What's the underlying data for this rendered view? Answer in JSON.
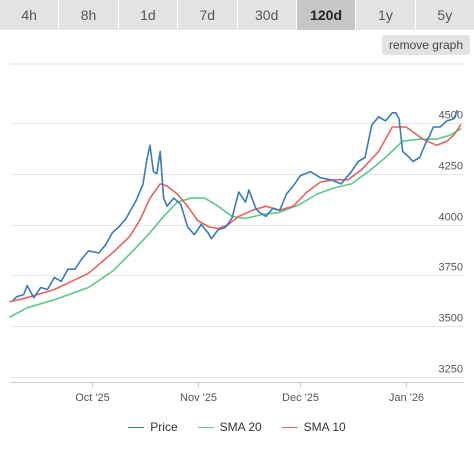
{
  "tabs": [
    {
      "label": "4h",
      "active": false
    },
    {
      "label": "8h",
      "active": false
    },
    {
      "label": "1d",
      "active": false
    },
    {
      "label": "7d",
      "active": false
    },
    {
      "label": "30d",
      "active": false
    },
    {
      "label": "120d",
      "active": true
    },
    {
      "label": "1y",
      "active": false
    },
    {
      "label": "5y",
      "active": false
    }
  ],
  "remove_button_label": "remove graph",
  "chart_data": {
    "type": "line",
    "x_axis": {
      "type": "date",
      "range": [
        "2025-09-07",
        "2026-01-18"
      ],
      "ticks": [
        {
          "date": "2025-10-01",
          "label": "Oct '25"
        },
        {
          "date": "2025-11-01",
          "label": "Nov '25"
        },
        {
          "date": "2025-12-01",
          "label": "Dec '25"
        },
        {
          "date": "2026-01-01",
          "label": "Jan '26"
        }
      ]
    },
    "y_axis": {
      "position": "right",
      "ylim": [
        3225,
        4790
      ],
      "ticks": [
        3250,
        3500,
        3750,
        4000,
        4250,
        4500
      ]
    },
    "grid": "horizontal",
    "legend_position": "bottom",
    "series": [
      {
        "name": "Price",
        "color": "#3a7ab8",
        "points": [
          [
            "2025-09-08",
            3630
          ],
          [
            "2025-09-09",
            3645
          ],
          [
            "2025-09-11",
            3655
          ],
          [
            "2025-09-12",
            3700
          ],
          [
            "2025-09-14",
            3640
          ],
          [
            "2025-09-16",
            3690
          ],
          [
            "2025-09-18",
            3680
          ],
          [
            "2025-09-20",
            3740
          ],
          [
            "2025-09-22",
            3720
          ],
          [
            "2025-09-24",
            3780
          ],
          [
            "2025-09-26",
            3780
          ],
          [
            "2025-09-28",
            3830
          ],
          [
            "2025-09-30",
            3870
          ],
          [
            "2025-10-03",
            3860
          ],
          [
            "2025-10-05",
            3900
          ],
          [
            "2025-10-07",
            3960
          ],
          [
            "2025-10-09",
            3990
          ],
          [
            "2025-10-11",
            4030
          ],
          [
            "2025-10-14",
            4120
          ],
          [
            "2025-10-16",
            4200
          ],
          [
            "2025-10-17",
            4310
          ],
          [
            "2025-10-18",
            4390
          ],
          [
            "2025-10-19",
            4260
          ],
          [
            "2025-10-20",
            4250
          ],
          [
            "2025-10-21",
            4360
          ],
          [
            "2025-10-22",
            4130
          ],
          [
            "2025-10-23",
            4090
          ],
          [
            "2025-10-25",
            4130
          ],
          [
            "2025-10-27",
            4100
          ],
          [
            "2025-10-29",
            3990
          ],
          [
            "2025-10-31",
            3950
          ],
          [
            "2025-11-02",
            4000
          ],
          [
            "2025-11-04",
            3960
          ],
          [
            "2025-11-05",
            3930
          ],
          [
            "2025-11-07",
            3975
          ],
          [
            "2025-11-09",
            3985
          ],
          [
            "2025-11-11",
            4030
          ],
          [
            "2025-11-13",
            4160
          ],
          [
            "2025-11-15",
            4110
          ],
          [
            "2025-11-16",
            4170
          ],
          [
            "2025-11-18",
            4080
          ],
          [
            "2025-11-19",
            4060
          ],
          [
            "2025-11-21",
            4040
          ],
          [
            "2025-11-23",
            4080
          ],
          [
            "2025-11-25",
            4070
          ],
          [
            "2025-11-27",
            4150
          ],
          [
            "2025-11-29",
            4190
          ],
          [
            "2025-12-01",
            4240
          ],
          [
            "2025-12-04",
            4260
          ],
          [
            "2025-12-07",
            4230
          ],
          [
            "2025-12-10",
            4220
          ],
          [
            "2025-12-13",
            4200
          ],
          [
            "2025-12-16",
            4260
          ],
          [
            "2025-12-18",
            4310
          ],
          [
            "2025-12-20",
            4330
          ],
          [
            "2025-12-22",
            4490
          ],
          [
            "2025-12-24",
            4530
          ],
          [
            "2025-12-26",
            4510
          ],
          [
            "2025-12-28",
            4550
          ],
          [
            "2025-12-29",
            4550
          ],
          [
            "2025-12-30",
            4520
          ],
          [
            "2025-12-31",
            4360
          ],
          [
            "2026-01-02",
            4330
          ],
          [
            "2026-01-03",
            4310
          ],
          [
            "2026-01-05",
            4330
          ],
          [
            "2026-01-07",
            4410
          ],
          [
            "2026-01-08",
            4440
          ],
          [
            "2026-01-09",
            4480
          ],
          [
            "2026-01-11",
            4480
          ],
          [
            "2026-01-13",
            4510
          ],
          [
            "2026-01-15",
            4520
          ],
          [
            "2026-01-16",
            4560
          ]
        ]
      },
      {
        "name": "SMA 20",
        "color": "#5cc887",
        "points": [
          [
            "2025-09-07",
            3545
          ],
          [
            "2025-09-12",
            3590
          ],
          [
            "2025-09-20",
            3630
          ],
          [
            "2025-09-30",
            3690
          ],
          [
            "2025-10-07",
            3770
          ],
          [
            "2025-10-13",
            3870
          ],
          [
            "2025-10-18",
            3960
          ],
          [
            "2025-10-22",
            4040
          ],
          [
            "2025-10-26",
            4110
          ],
          [
            "2025-10-30",
            4130
          ],
          [
            "2025-11-03",
            4130
          ],
          [
            "2025-11-07",
            4090
          ],
          [
            "2025-11-11",
            4040
          ],
          [
            "2025-11-15",
            4030
          ],
          [
            "2025-11-20",
            4050
          ],
          [
            "2025-11-25",
            4060
          ],
          [
            "2025-12-01",
            4100
          ],
          [
            "2025-12-06",
            4150
          ],
          [
            "2025-12-11",
            4180
          ],
          [
            "2025-12-16",
            4200
          ],
          [
            "2025-12-21",
            4260
          ],
          [
            "2025-12-26",
            4330
          ],
          [
            "2025-12-31",
            4410
          ],
          [
            "2026-01-05",
            4420
          ],
          [
            "2026-01-10",
            4420
          ],
          [
            "2026-01-14",
            4440
          ],
          [
            "2026-01-17",
            4470
          ]
        ]
      },
      {
        "name": "SMA 10",
        "color": "#e6645f",
        "points": [
          [
            "2025-09-07",
            3620
          ],
          [
            "2025-09-12",
            3640
          ],
          [
            "2025-09-20",
            3680
          ],
          [
            "2025-09-30",
            3760
          ],
          [
            "2025-10-07",
            3860
          ],
          [
            "2025-10-12",
            3940
          ],
          [
            "2025-10-15",
            4020
          ],
          [
            "2025-10-18",
            4130
          ],
          [
            "2025-10-21",
            4200
          ],
          [
            "2025-10-23",
            4190
          ],
          [
            "2025-10-26",
            4150
          ],
          [
            "2025-10-29",
            4090
          ],
          [
            "2025-11-01",
            4020
          ],
          [
            "2025-11-04",
            3990
          ],
          [
            "2025-11-07",
            3980
          ],
          [
            "2025-11-10",
            4000
          ],
          [
            "2025-11-13",
            4040
          ],
          [
            "2025-11-17",
            4070
          ],
          [
            "2025-11-21",
            4090
          ],
          [
            "2025-11-25",
            4070
          ],
          [
            "2025-11-29",
            4090
          ],
          [
            "2025-12-03",
            4160
          ],
          [
            "2025-12-07",
            4210
          ],
          [
            "2025-12-11",
            4220
          ],
          [
            "2025-12-15",
            4220
          ],
          [
            "2025-12-19",
            4270
          ],
          [
            "2025-12-24",
            4360
          ],
          [
            "2025-12-28",
            4480
          ],
          [
            "2026-01-01",
            4480
          ],
          [
            "2026-01-06",
            4420
          ],
          [
            "2026-01-10",
            4390
          ],
          [
            "2026-01-13",
            4410
          ],
          [
            "2026-01-15",
            4440
          ],
          [
            "2026-01-17",
            4490
          ]
        ]
      }
    ]
  }
}
